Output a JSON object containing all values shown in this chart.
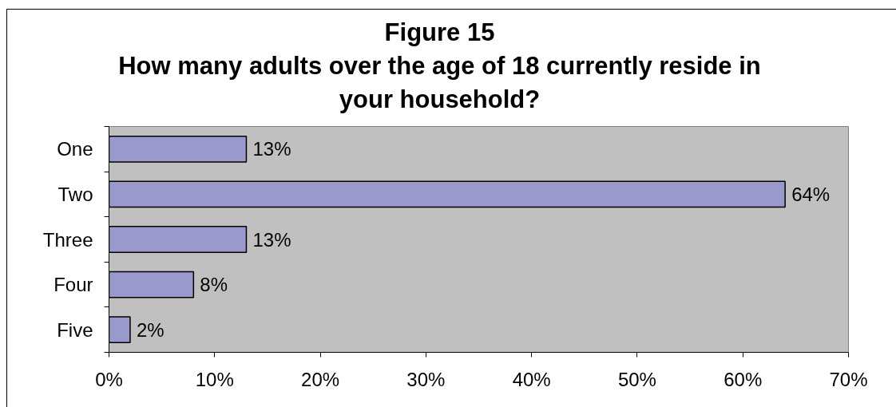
{
  "chart_data": {
    "type": "bar",
    "orientation": "horizontal",
    "title": "Figure 15",
    "subtitle": "How many adults over the age of 18 currently reside in your household?",
    "categories": [
      "One",
      "Two",
      "Three",
      "Four",
      "Five"
    ],
    "values": [
      13,
      64,
      13,
      8,
      2
    ],
    "color": "#9999cc",
    "value_labels": [
      "13%",
      "64%",
      "13%",
      "8%",
      "2%"
    ],
    "xlim": [
      0,
      70
    ],
    "xticks": [
      {
        "value": 0,
        "label": "0%"
      },
      {
        "value": 10,
        "label": "10%"
      },
      {
        "value": 20,
        "label": "20%"
      },
      {
        "value": 30,
        "label": "30%"
      },
      {
        "value": 40,
        "label": "40%"
      },
      {
        "value": 50,
        "label": "50%"
      },
      {
        "value": 60,
        "label": "60%"
      },
      {
        "value": 70,
        "label": "70%"
      }
    ]
  }
}
